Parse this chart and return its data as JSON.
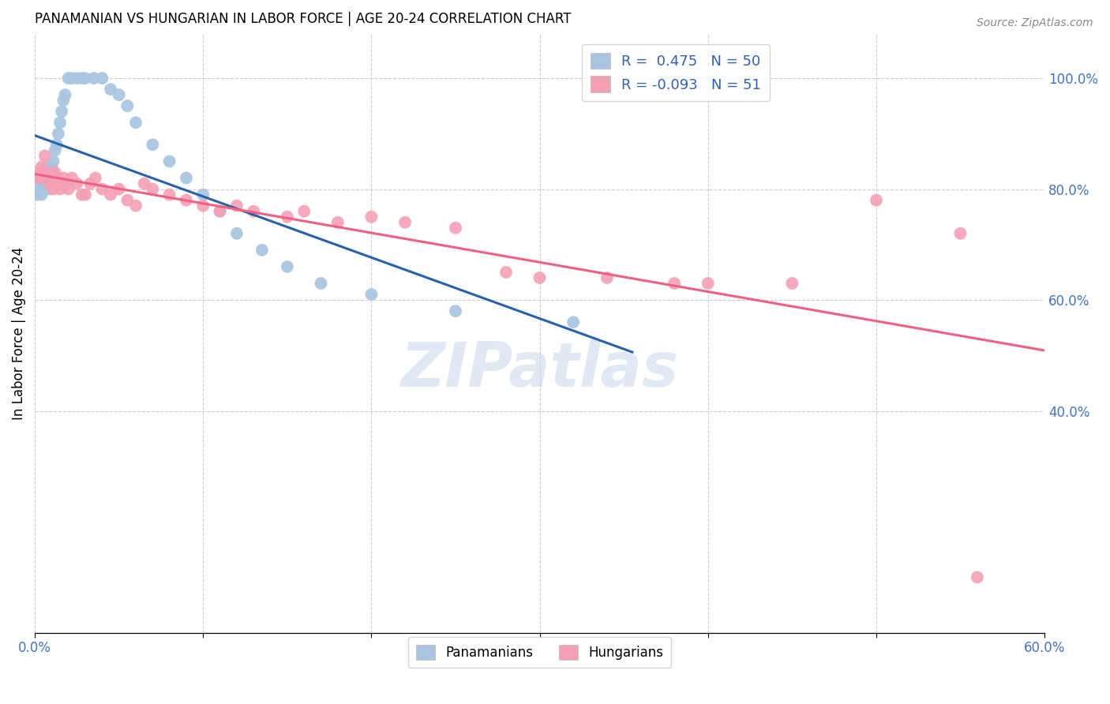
{
  "title": "PANAMANIAN VS HUNGARIAN IN LABOR FORCE | AGE 20-24 CORRELATION CHART",
  "source": "Source: ZipAtlas.com",
  "ylabel": "In Labor Force | Age 20-24",
  "xlim": [
    0.0,
    0.6
  ],
  "ylim": [
    0.0,
    1.08
  ],
  "xtick_positions": [
    0.0,
    0.1,
    0.2,
    0.3,
    0.4,
    0.5,
    0.6
  ],
  "xtick_labels": [
    "0.0%",
    "",
    "",
    "",
    "",
    "",
    "60.0%"
  ],
  "ytick_vals_right": [
    0.4,
    0.6,
    0.8,
    1.0
  ],
  "ytick_labels_right": [
    "40.0%",
    "60.0%",
    "80.0%",
    "100.0%"
  ],
  "r_panama": 0.475,
  "n_panama": 50,
  "r_hungary": -0.093,
  "n_hungary": 51,
  "panama_color": "#a8c4e0",
  "hungary_color": "#f4a0b4",
  "panama_line_color": "#2860b0",
  "hungary_line_color": "#f06080",
  "watermark": "ZIPatlas",
  "panama_x": [
    0.001,
    0.002,
    0.002,
    0.003,
    0.003,
    0.004,
    0.004,
    0.005,
    0.005,
    0.006,
    0.006,
    0.007,
    0.007,
    0.008,
    0.008,
    0.009,
    0.009,
    0.01,
    0.01,
    0.011,
    0.012,
    0.013,
    0.014,
    0.015,
    0.016,
    0.017,
    0.018,
    0.02,
    0.022,
    0.025,
    0.028,
    0.03,
    0.035,
    0.04,
    0.045,
    0.05,
    0.055,
    0.06,
    0.07,
    0.08,
    0.09,
    0.1,
    0.11,
    0.12,
    0.135,
    0.15,
    0.17,
    0.2,
    0.25,
    0.32
  ],
  "panama_y": [
    0.79,
    0.8,
    0.82,
    0.81,
    0.83,
    0.79,
    0.81,
    0.82,
    0.8,
    0.81,
    0.83,
    0.82,
    0.84,
    0.82,
    0.81,
    0.83,
    0.8,
    0.83,
    0.84,
    0.85,
    0.87,
    0.88,
    0.9,
    0.92,
    0.94,
    0.96,
    0.97,
    1.0,
    1.0,
    1.0,
    1.0,
    1.0,
    1.0,
    1.0,
    0.98,
    0.97,
    0.95,
    0.92,
    0.88,
    0.85,
    0.82,
    0.79,
    0.76,
    0.72,
    0.69,
    0.66,
    0.63,
    0.61,
    0.58,
    0.56
  ],
  "hungary_x": [
    0.002,
    0.003,
    0.004,
    0.005,
    0.006,
    0.007,
    0.008,
    0.009,
    0.01,
    0.011,
    0.012,
    0.013,
    0.015,
    0.016,
    0.017,
    0.018,
    0.02,
    0.022,
    0.025,
    0.028,
    0.03,
    0.033,
    0.036,
    0.04,
    0.045,
    0.05,
    0.055,
    0.06,
    0.065,
    0.07,
    0.08,
    0.09,
    0.1,
    0.11,
    0.12,
    0.13,
    0.15,
    0.16,
    0.18,
    0.2,
    0.22,
    0.25,
    0.28,
    0.3,
    0.34,
    0.38,
    0.4,
    0.45,
    0.5,
    0.55,
    0.56
  ],
  "hungary_y": [
    0.82,
    0.83,
    0.84,
    0.82,
    0.86,
    0.83,
    0.82,
    0.81,
    0.82,
    0.8,
    0.83,
    0.82,
    0.8,
    0.81,
    0.82,
    0.81,
    0.8,
    0.82,
    0.81,
    0.79,
    0.79,
    0.81,
    0.82,
    0.8,
    0.79,
    0.8,
    0.78,
    0.77,
    0.81,
    0.8,
    0.79,
    0.78,
    0.77,
    0.76,
    0.77,
    0.76,
    0.75,
    0.76,
    0.74,
    0.75,
    0.74,
    0.73,
    0.65,
    0.64,
    0.64,
    0.63,
    0.63,
    0.63,
    0.78,
    0.72,
    0.1
  ]
}
